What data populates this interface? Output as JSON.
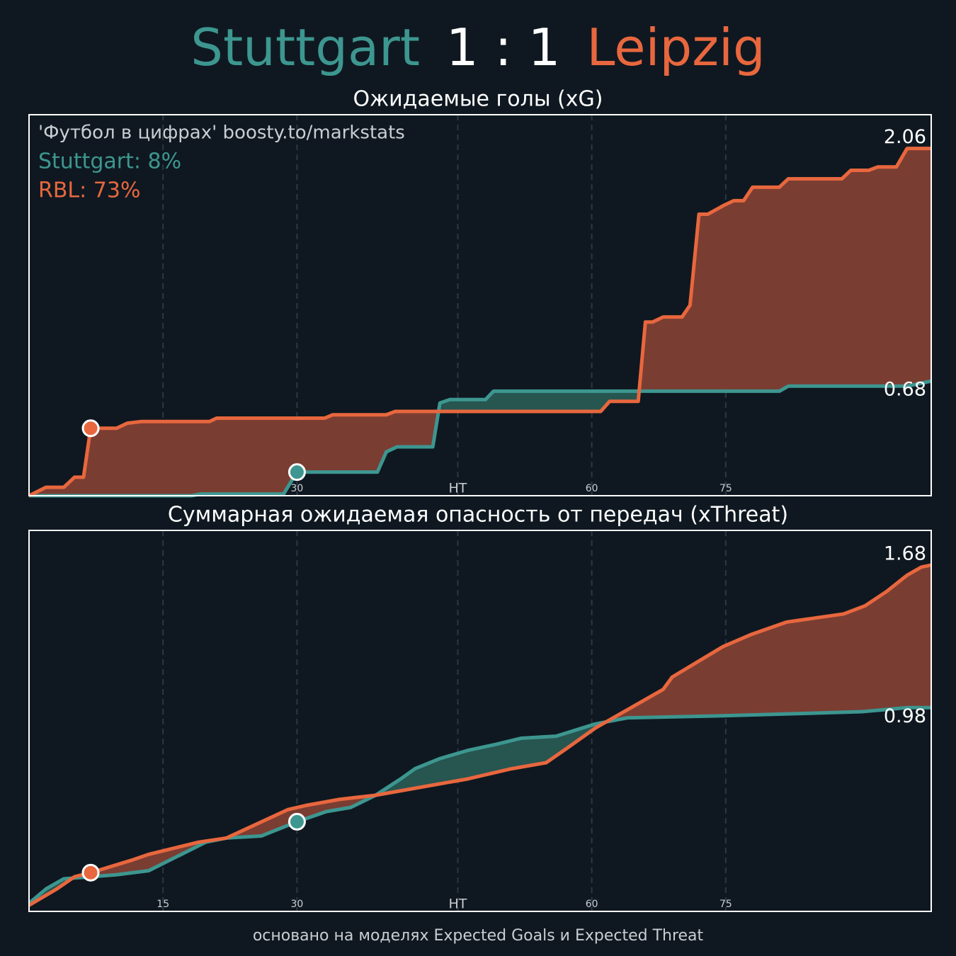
{
  "title": {
    "home": "Stuttgart",
    "score": "1 : 1",
    "away": "Leipzig",
    "home_color": "#3d9690",
    "away_color": "#e8673e"
  },
  "footer": "основано на моделях Expected Goals и Expected Threat",
  "chart_data": [
    {
      "type": "line",
      "title": "Ожидаемые голы (xG)",
      "xlim": [
        0,
        101
      ],
      "ylim": [
        0,
        2.26
      ],
      "xticks": [
        15,
        30,
        {
          "value": 48,
          "label": "HT"
        },
        {
          "value": 63,
          "label": "60"
        },
        {
          "value": 78,
          "label": "75"
        }
      ],
      "grid": true,
      "annotations": [
        {
          "text": "'Футбол в цифрах' boosty.to/markstats",
          "color": "#c9ced3"
        },
        {
          "text": "Stuttgart: 8%",
          "color": "#3d9690"
        },
        {
          "text": "RBL: 73%",
          "color": "#e8673e"
        }
      ],
      "series": [
        {
          "color": "#3d9690",
          "fill": "#275550",
          "x": [
            0,
            18.2,
            19.2,
            28.5,
            29.3,
            30,
            39,
            40,
            41.2,
            45.2,
            46,
            47.1,
            51.1,
            52,
            84,
            85,
            98.3,
            101
          ],
          "values": [
            0,
            0,
            0.01,
            0.01,
            0.08,
            0.14,
            0.14,
            0.26,
            0.29,
            0.29,
            0.55,
            0.57,
            0.57,
            0.62,
            0.62,
            0.65,
            0.65,
            0.68
          ]
        },
        {
          "color": "#e8673e",
          "fill": "#7a3d32",
          "x": [
            0,
            1.9,
            3.9,
            5.1,
            6.1,
            6.9,
            9.8,
            11,
            12.6,
            20.2,
            21,
            33.1,
            34,
            40,
            41,
            64,
            65,
            68.2,
            69,
            69.8,
            71,
            73.1,
            74,
            75,
            76,
            77.7,
            78.9,
            80,
            81,
            84,
            85,
            91,
            92,
            94,
            95,
            97.1,
            98.3,
            101
          ],
          "values": [
            0,
            0.05,
            0.05,
            0.11,
            0.11,
            0.4,
            0.4,
            0.43,
            0.44,
            0.44,
            0.46,
            0.46,
            0.48,
            0.48,
            0.5,
            0.5,
            0.56,
            0.56,
            1.03,
            1.03,
            1.06,
            1.06,
            1.13,
            1.67,
            1.67,
            1.72,
            1.75,
            1.75,
            1.83,
            1.83,
            1.88,
            1.88,
            1.93,
            1.93,
            1.95,
            1.95,
            2.06,
            2.06
          ]
        }
      ],
      "markers": [
        {
          "x": 6.9,
          "y": 0.4,
          "color": "#e8673e"
        },
        {
          "x": 30,
          "y": 0.14,
          "color": "#3d9690"
        }
      ]
    },
    {
      "type": "line",
      "title": "Суммарная ожидаемая опасность от передач (xThreat)",
      "xlim": [
        0,
        101
      ],
      "ylim": [
        -0.02,
        1.85
      ],
      "xticks": [
        15,
        30,
        {
          "value": 48,
          "label": "HT"
        },
        {
          "value": 63,
          "label": "60"
        },
        {
          "value": 78,
          "label": "75"
        }
      ],
      "grid": true,
      "series": [
        {
          "color": "#3d9690",
          "fill": "#275550",
          "x": [
            0,
            1.9,
            3.9,
            6.9,
            9.8,
            13.4,
            16.6,
            19.8,
            22.1,
            26,
            30,
            33.3,
            36,
            38.8,
            41.6,
            43.2,
            46,
            49.1,
            52.3,
            55.1,
            59,
            63.4,
            67,
            77.7,
            85.6,
            93.2,
            98.3,
            101
          ],
          "values": [
            0.02,
            0.09,
            0.14,
            0.15,
            0.16,
            0.18,
            0.25,
            0.32,
            0.34,
            0.35,
            0.42,
            0.47,
            0.49,
            0.55,
            0.63,
            0.68,
            0.73,
            0.77,
            0.8,
            0.83,
            0.84,
            0.9,
            0.93,
            0.94,
            0.95,
            0.96,
            0.98,
            0.98
          ]
        },
        {
          "color": "#e8673e",
          "fill": "#7a3d32",
          "x": [
            0,
            3.1,
            5.1,
            6.9,
            11.4,
            13.4,
            19,
            22.1,
            29,
            31,
            34.8,
            38.8,
            45.2,
            49.1,
            54,
            57.9,
            60.2,
            63.4,
            66.6,
            68.6,
            71,
            72,
            77.7,
            80.9,
            84.8,
            88,
            91.2,
            93.6,
            96,
            98.3,
            99.9,
            101
          ],
          "values": [
            0.01,
            0.09,
            0.15,
            0.17,
            0.23,
            0.26,
            0.32,
            0.34,
            0.48,
            0.5,
            0.53,
            0.55,
            0.6,
            0.63,
            0.68,
            0.71,
            0.78,
            0.88,
            0.96,
            1.01,
            1.07,
            1.13,
            1.28,
            1.34,
            1.4,
            1.42,
            1.44,
            1.48,
            1.55,
            1.63,
            1.67,
            1.68
          ]
        }
      ],
      "markers": [
        {
          "x": 6.9,
          "y": 0.17,
          "color": "#e8673e"
        },
        {
          "x": 30,
          "y": 0.42,
          "color": "#3d9690"
        }
      ]
    }
  ]
}
